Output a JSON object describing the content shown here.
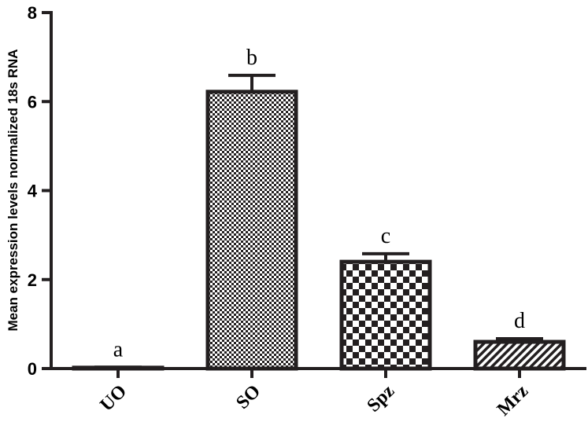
{
  "chart_data": {
    "type": "bar",
    "title": "",
    "xlabel": "",
    "ylabel": "Mean expression levels normalized 18s RNA",
    "ylim": [
      0,
      8
    ],
    "yticks": [
      0,
      2,
      4,
      6,
      8
    ],
    "categories": [
      "UO",
      "SO",
      "Spz",
      "Mrz"
    ],
    "values": [
      0.02,
      6.22,
      2.4,
      0.6
    ],
    "errors": [
      0.01,
      0.37,
      0.18,
      0.07
    ],
    "annotations": [
      "a",
      "b",
      "c",
      "d"
    ],
    "patterns": [
      "none",
      "fine-checker",
      "checker",
      "diagonal-hatch"
    ],
    "grid": false,
    "legend": "none",
    "colors": {
      "bar_stroke": "#231f20",
      "bar_fill": "#ffffff"
    }
  }
}
